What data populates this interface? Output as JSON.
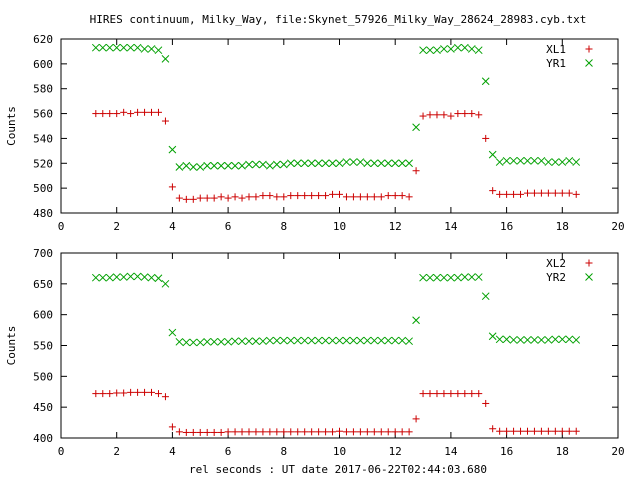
{
  "title": "HIRES continuum, Milky_Way, file:Skynet_57926_Milky_Way_28624_28983.cyb.txt",
  "xlabel": "rel seconds : UT date 2017-06-22T02:44:03.680",
  "chart_data": [
    {
      "type": "scatter",
      "title": "HIRES continuum, Milky_Way, file:Skynet_57926_Milky_Way_28624_28983.cyb.txt",
      "xlabel": "",
      "ylabel": "Counts",
      "xlim": [
        0,
        20
      ],
      "ylim": [
        480,
        620
      ],
      "xticks": [
        0,
        2,
        4,
        6,
        8,
        10,
        12,
        14,
        16,
        18,
        20
      ],
      "yticks": [
        480,
        500,
        520,
        540,
        560,
        580,
        600,
        620
      ],
      "grid": false,
      "legend": "top-right",
      "series": [
        {
          "name": "XL1",
          "marker": "+",
          "color": "#cc0000",
          "x": [
            1.25,
            1.5,
            1.75,
            2.0,
            2.25,
            2.5,
            2.75,
            3.0,
            3.25,
            3.5,
            3.75,
            4.0,
            4.25,
            4.5,
            4.75,
            5.0,
            5.25,
            5.5,
            5.75,
            6.0,
            6.25,
            6.5,
            6.75,
            7.0,
            7.25,
            7.5,
            7.75,
            8.0,
            8.25,
            8.5,
            8.75,
            9.0,
            9.25,
            9.5,
            9.75,
            10.0,
            10.25,
            10.5,
            10.75,
            11.0,
            11.25,
            11.5,
            11.75,
            12.0,
            12.25,
            12.5,
            12.75,
            13.0,
            13.25,
            13.5,
            13.75,
            14.0,
            14.25,
            14.5,
            14.75,
            15.0,
            15.25,
            15.5,
            15.75,
            16.0,
            16.25,
            16.5,
            16.75,
            17.0,
            17.25,
            17.5,
            17.75,
            18.0,
            18.25,
            18.5
          ],
          "y": [
            560,
            560,
            560,
            560,
            561,
            560,
            561,
            561,
            561,
            561,
            554,
            501,
            492,
            491,
            491,
            492,
            492,
            492,
            493,
            492,
            493,
            492,
            493,
            493,
            494,
            494,
            493,
            493,
            494,
            494,
            494,
            494,
            494,
            494,
            495,
            495,
            493,
            493,
            493,
            493,
            493,
            493,
            494,
            494,
            494,
            493,
            514,
            558,
            559,
            559,
            559,
            558,
            560,
            560,
            560,
            559,
            540,
            498,
            495,
            495,
            495,
            495,
            496,
            496,
            496,
            496,
            496,
            496,
            496,
            495
          ]
        },
        {
          "name": "YR1",
          "marker": "x",
          "color": "#00a000",
          "x": [
            1.25,
            1.5,
            1.75,
            2.0,
            2.25,
            2.5,
            2.75,
            3.0,
            3.25,
            3.5,
            3.75,
            4.0,
            4.25,
            4.5,
            4.75,
            5.0,
            5.25,
            5.5,
            5.75,
            6.0,
            6.25,
            6.5,
            6.75,
            7.0,
            7.25,
            7.5,
            7.75,
            8.0,
            8.25,
            8.5,
            8.75,
            9.0,
            9.25,
            9.5,
            9.75,
            10.0,
            10.25,
            10.5,
            10.75,
            11.0,
            11.25,
            11.5,
            11.75,
            12.0,
            12.25,
            12.5,
            12.75,
            13.0,
            13.25,
            13.5,
            13.75,
            14.0,
            14.25,
            14.5,
            14.75,
            15.0,
            15.25,
            15.5,
            15.75,
            16.0,
            16.25,
            16.5,
            16.75,
            17.0,
            17.25,
            17.5,
            17.75,
            18.0,
            18.25,
            18.5
          ],
          "y": [
            613,
            613,
            613,
            613,
            613,
            613,
            613,
            612,
            612,
            611,
            604,
            531,
            517,
            518,
            517,
            517,
            518,
            518,
            518,
            518,
            518,
            518,
            519,
            519,
            519,
            518,
            519,
            519,
            520,
            520,
            520,
            520,
            520,
            520,
            520,
            520,
            521,
            521,
            521,
            520,
            520,
            520,
            520,
            520,
            520,
            520,
            549,
            611,
            611,
            611,
            612,
            612,
            613,
            613,
            612,
            611,
            586,
            527,
            521,
            522,
            522,
            522,
            522,
            522,
            522,
            521,
            521,
            521,
            522,
            521
          ]
        }
      ]
    },
    {
      "type": "scatter",
      "title": "",
      "xlabel": "rel seconds : UT date 2017-06-22T02:44:03.680",
      "ylabel": "Counts",
      "xlim": [
        0,
        20
      ],
      "ylim": [
        400,
        700
      ],
      "xticks": [
        0,
        2,
        4,
        6,
        8,
        10,
        12,
        14,
        16,
        18,
        20
      ],
      "yticks": [
        400,
        450,
        500,
        550,
        600,
        650,
        700
      ],
      "grid": false,
      "legend": "top-right",
      "series": [
        {
          "name": "XL2",
          "marker": "+",
          "color": "#cc0000",
          "x": [
            1.25,
            1.5,
            1.75,
            2.0,
            2.25,
            2.5,
            2.75,
            3.0,
            3.25,
            3.5,
            3.75,
            4.0,
            4.25,
            4.5,
            4.75,
            5.0,
            5.25,
            5.5,
            5.75,
            6.0,
            6.25,
            6.5,
            6.75,
            7.0,
            7.25,
            7.5,
            7.75,
            8.0,
            8.25,
            8.5,
            8.75,
            9.0,
            9.25,
            9.5,
            9.75,
            10.0,
            10.25,
            10.5,
            10.75,
            11.0,
            11.25,
            11.5,
            11.75,
            12.0,
            12.25,
            12.5,
            12.75,
            13.0,
            13.25,
            13.5,
            13.75,
            14.0,
            14.25,
            14.5,
            14.75,
            15.0,
            15.25,
            15.5,
            15.75,
            16.0,
            16.25,
            16.5,
            16.75,
            17.0,
            17.25,
            17.5,
            17.75,
            18.0,
            18.25,
            18.5
          ],
          "y": [
            472,
            472,
            472,
            473,
            473,
            474,
            474,
            474,
            474,
            472,
            467,
            418,
            410,
            409,
            409,
            409,
            409,
            409,
            409,
            410,
            410,
            410,
            410,
            410,
            410,
            410,
            410,
            410,
            410,
            410,
            410,
            410,
            410,
            410,
            410,
            411,
            410,
            410,
            410,
            410,
            410,
            410,
            410,
            410,
            410,
            410,
            431,
            472,
            472,
            472,
            472,
            472,
            472,
            472,
            472,
            472,
            456,
            415,
            411,
            411,
            411,
            411,
            411,
            411,
            411,
            411,
            411,
            411,
            411,
            411
          ]
        },
        {
          "name": "YR2",
          "marker": "x",
          "color": "#00a000",
          "x": [
            1.25,
            1.5,
            1.75,
            2.0,
            2.25,
            2.5,
            2.75,
            3.0,
            3.25,
            3.5,
            3.75,
            4.0,
            4.25,
            4.5,
            4.75,
            5.0,
            5.25,
            5.5,
            5.75,
            6.0,
            6.25,
            6.5,
            6.75,
            7.0,
            7.25,
            7.5,
            7.75,
            8.0,
            8.25,
            8.5,
            8.75,
            9.0,
            9.25,
            9.5,
            9.75,
            10.0,
            10.25,
            10.5,
            10.75,
            11.0,
            11.25,
            11.5,
            11.75,
            12.0,
            12.25,
            12.5,
            12.75,
            13.0,
            13.25,
            13.5,
            13.75,
            14.0,
            14.25,
            14.5,
            14.75,
            15.0,
            15.25,
            15.5,
            15.75,
            16.0,
            16.25,
            16.5,
            16.75,
            17.0,
            17.25,
            17.5,
            17.75,
            18.0,
            18.25,
            18.5
          ],
          "y": [
            660,
            660,
            660,
            661,
            661,
            662,
            662,
            661,
            660,
            659,
            650,
            571,
            556,
            555,
            555,
            555,
            556,
            556,
            556,
            556,
            557,
            557,
            557,
            557,
            557,
            558,
            558,
            558,
            558,
            558,
            558,
            558,
            558,
            558,
            558,
            558,
            558,
            558,
            558,
            558,
            558,
            558,
            558,
            558,
            558,
            557,
            591,
            660,
            660,
            660,
            660,
            660,
            660,
            661,
            661,
            661,
            630,
            565,
            560,
            560,
            559,
            559,
            559,
            559,
            559,
            559,
            560,
            560,
            560,
            559
          ]
        }
      ]
    }
  ]
}
